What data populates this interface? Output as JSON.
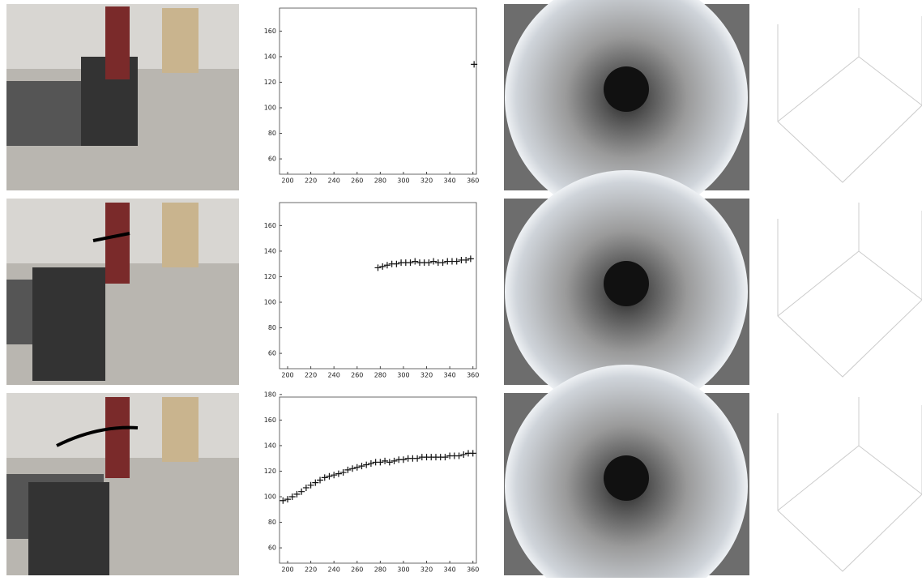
{
  "chart_data": [
    {
      "type": "scatter",
      "xlim": [
        193,
        363
      ],
      "ylim": [
        48,
        178
      ],
      "xticks": [
        200,
        220,
        240,
        260,
        280,
        300,
        320,
        340,
        360
      ],
      "yticks": [
        60,
        80,
        100,
        120,
        140,
        160
      ],
      "series": [
        {
          "color": "#111111",
          "x": [
            361
          ],
          "values": [
            134
          ]
        }
      ]
    },
    {
      "type": "scatter",
      "xlim": [
        193,
        363
      ],
      "ylim": [
        48,
        178
      ],
      "xticks": [
        200,
        220,
        240,
        260,
        280,
        300,
        320,
        340,
        360
      ],
      "yticks": [
        60,
        80,
        100,
        120,
        140,
        160
      ],
      "series": [
        {
          "color": "#111111",
          "x": [
            278,
            282,
            286,
            290,
            294,
            298,
            302,
            306,
            310,
            314,
            318,
            322,
            326,
            330,
            334,
            338,
            342,
            346,
            350,
            354,
            358
          ],
          "values": [
            127,
            128,
            129,
            130,
            130,
            131,
            131,
            131,
            132,
            131,
            131,
            131,
            132,
            131,
            131,
            132,
            132,
            132,
            133,
            133,
            134
          ]
        }
      ]
    },
    {
      "type": "scatter",
      "xlim": [
        193,
        363
      ],
      "ylim": [
        48,
        178
      ],
      "xticks": [
        200,
        220,
        240,
        260,
        280,
        300,
        320,
        340,
        360
      ],
      "yticks": [
        60,
        80,
        100,
        120,
        140,
        160,
        180
      ],
      "series": [
        {
          "color": "#111111",
          "x": [
            196,
            200,
            204,
            208,
            212,
            216,
            220,
            224,
            228,
            232,
            236,
            240,
            244,
            248,
            252,
            256,
            260,
            264,
            268,
            272,
            276,
            280,
            284,
            288,
            292,
            296,
            300,
            304,
            308,
            312,
            316,
            320,
            324,
            328,
            332,
            336,
            340,
            344,
            348,
            352,
            356,
            360
          ],
          "values": [
            97,
            98,
            100,
            102,
            104,
            107,
            109,
            111,
            113,
            115,
            116,
            117,
            118,
            119,
            121,
            122,
            123,
            124,
            125,
            126,
            127,
            127,
            128,
            127,
            128,
            129,
            129,
            130,
            130,
            130,
            131,
            131,
            131,
            131,
            131,
            131,
            132,
            132,
            132,
            133,
            134,
            134
          ]
        }
      ]
    }
  ]
}
